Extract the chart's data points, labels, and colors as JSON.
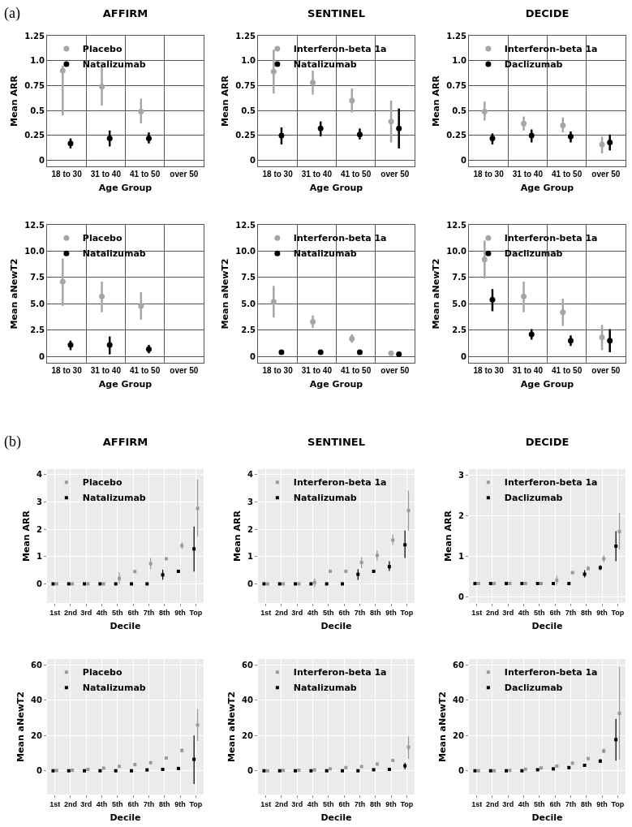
{
  "chart_data": [
    {
      "type": "scatter",
      "title": "AFFIRM",
      "xlabel": "Age Group",
      "ylabel": "Mean ARR",
      "annotations": [
        "(a)"
      ],
      "categories": [
        "18 to 30",
        "31 to 40",
        "41 to 50",
        "over 50"
      ],
      "ylim": [
        -0.06,
        1.25
      ],
      "yticks": [
        0,
        0.25,
        0.5,
        0.75,
        {
          "value": 1,
          "label": "1.0"
        },
        1.25
      ],
      "grid": true,
      "legend": "top left",
      "marker": "circle",
      "series": [
        {
          "name": "Placebo",
          "color": "#a6a6a6",
          "values": [
            0.9,
            0.74,
            0.49,
            null
          ],
          "errors": [
            [
              0.45,
              0.95
            ],
            [
              0.55,
              0.94
            ],
            [
              0.37,
              0.62
            ],
            null
          ]
        },
        {
          "name": "Natalizumab",
          "color": "#000000",
          "values": [
            0.17,
            0.22,
            0.22,
            null
          ],
          "errors": [
            [
              0.12,
              0.22
            ],
            [
              0.14,
              0.3
            ],
            [
              0.17,
              0.28
            ],
            null
          ]
        }
      ]
    },
    {
      "type": "scatter",
      "title": "SENTINEL",
      "xlabel": "Age Group",
      "ylabel": "Mean ARR",
      "categories": [
        "18 to 30",
        "31 to 40",
        "41 to 50",
        "over 50"
      ],
      "ylim": [
        -0.06,
        1.25
      ],
      "yticks": [
        0,
        0.25,
        0.5,
        0.75,
        {
          "value": 1,
          "label": "1.0"
        },
        1.25
      ],
      "grid": true,
      "legend": "top left",
      "marker": "circle",
      "series": [
        {
          "name": "Interferon-beta 1a",
          "color": "#a6a6a6",
          "values": [
            0.89,
            0.78,
            0.6,
            0.39
          ],
          "errors": [
            [
              0.67,
              1.11
            ],
            [
              0.66,
              0.9
            ],
            [
              0.48,
              0.72
            ],
            [
              0.18,
              0.6
            ]
          ]
        },
        {
          "name": "Natalizumab",
          "color": "#000000",
          "values": [
            0.25,
            0.32,
            0.26,
            0.32
          ],
          "errors": [
            [
              0.16,
              0.33
            ],
            [
              0.24,
              0.39
            ],
            [
              0.21,
              0.32
            ],
            [
              0.12,
              0.52
            ]
          ]
        }
      ]
    },
    {
      "type": "scatter",
      "title": "DECIDE",
      "xlabel": "Age Group",
      "ylabel": "Mean ARR",
      "categories": [
        "18 to 30",
        "31 to 40",
        "41 to 50",
        "over 50"
      ],
      "ylim": [
        -0.06,
        1.25
      ],
      "yticks": [
        0,
        0.25,
        0.5,
        0.75,
        {
          "value": 1,
          "label": "1.0"
        },
        1.25
      ],
      "grid": true,
      "legend": "top left",
      "marker": "circle",
      "series": [
        {
          "name": "Interferon-beta 1a",
          "color": "#a6a6a6",
          "values": [
            0.49,
            0.37,
            0.35,
            0.16
          ],
          "errors": [
            [
              0.4,
              0.59
            ],
            [
              0.3,
              0.44
            ],
            [
              0.28,
              0.43
            ],
            [
              0.07,
              0.24
            ]
          ]
        },
        {
          "name": "Daclizumab",
          "color": "#000000",
          "values": [
            0.22,
            0.25,
            0.24,
            0.18
          ],
          "errors": [
            [
              0.16,
              0.27
            ],
            [
              0.18,
              0.31
            ],
            [
              0.18,
              0.29
            ],
            [
              0.1,
              0.26
            ]
          ]
        }
      ]
    },
    {
      "type": "scatter",
      "xlabel": "Age Group",
      "ylabel": "Mean aNewT2",
      "categories": [
        "18 to 30",
        "31 to 40",
        "41 to 50",
        "over 50"
      ],
      "ylim": [
        -0.6,
        12.5
      ],
      "yticks": [
        0,
        2.5,
        {
          "value": 5,
          "label": "5.0"
        },
        7.5,
        {
          "value": 10,
          "label": "10.0"
        },
        12.5
      ],
      "grid": true,
      "legend": "top left",
      "marker": "circle",
      "series": [
        {
          "name": "Placebo",
          "color": "#a6a6a6",
          "values": [
            7.1,
            5.7,
            4.8,
            null
          ],
          "errors": [
            [
              4.8,
              9.3
            ],
            [
              4.2,
              7.1
            ],
            [
              3.5,
              6.1
            ],
            null
          ]
        },
        {
          "name": "Natalizumab",
          "color": "#000000",
          "values": [
            1.1,
            1.1,
            0.7,
            null
          ],
          "errors": [
            [
              0.6,
              1.5
            ],
            [
              0.2,
              1.9
            ],
            [
              0.3,
              1.1
            ],
            null
          ]
        }
      ]
    },
    {
      "type": "scatter",
      "xlabel": "Age Group",
      "ylabel": "Mean aNewT2",
      "categories": [
        "18 to 30",
        "31 to 40",
        "41 to 50",
        "over 50"
      ],
      "ylim": [
        -0.6,
        12.5
      ],
      "yticks": [
        0,
        2.5,
        {
          "value": 5,
          "label": "5.0"
        },
        7.5,
        {
          "value": 10,
          "label": "10.0"
        },
        12.5
      ],
      "grid": true,
      "legend": "top left",
      "marker": "circle",
      "series": [
        {
          "name": "Interferon-beta 1a",
          "color": "#a6a6a6",
          "values": [
            5.2,
            3.3,
            1.7,
            0.3
          ],
          "errors": [
            [
              3.7,
              6.7
            ],
            [
              2.7,
              3.9
            ],
            [
              1.3,
              2.1
            ],
            null
          ]
        },
        {
          "name": "Natalizumab",
          "color": "#000000",
          "values": [
            0.4,
            0.4,
            0.4,
            0.2
          ]
        }
      ]
    },
    {
      "type": "scatter",
      "xlabel": "Age Group",
      "ylabel": "Mean aNewT2",
      "categories": [
        "18 to 30",
        "31 to 40",
        "41 to 50",
        "over 50"
      ],
      "ylim": [
        -0.6,
        12.5
      ],
      "yticks": [
        0,
        2.5,
        {
          "value": 5,
          "label": "5.0"
        },
        7.5,
        {
          "value": 10,
          "label": "10.0"
        },
        12.5
      ],
      "grid": true,
      "legend": "top left",
      "marker": "circle",
      "series": [
        {
          "name": "Interferon-beta 1a",
          "color": "#a6a6a6",
          "values": [
            9.2,
            5.7,
            4.2,
            1.8
          ],
          "errors": [
            [
              7.4,
              11.0
            ],
            [
              4.2,
              7.1
            ],
            [
              2.9,
              5.5
            ],
            [
              0.6,
              3.0
            ]
          ]
        },
        {
          "name": "Daclizumab",
          "color": "#000000",
          "values": [
            5.4,
            2.1,
            1.5,
            1.5
          ],
          "errors": [
            [
              4.3,
              6.4
            ],
            [
              1.6,
              2.6
            ],
            [
              1.0,
              2.0
            ],
            [
              0.4,
              2.6
            ]
          ]
        }
      ]
    },
    {
      "type": "scatter",
      "title": "AFFIRM",
      "xlabel": "Decile",
      "ylabel": "Mean ARR",
      "annotations": [
        "(b)"
      ],
      "categories": [
        "1st",
        "2nd",
        "3rd",
        "4th",
        "5th",
        "6th",
        "7th",
        "8th",
        "9th",
        "Top"
      ],
      "ylim": [
        -0.7,
        4.2
      ],
      "yticks": [
        0,
        1,
        2,
        3,
        4
      ],
      "grid": true,
      "legend": "top left",
      "marker": "square",
      "series": [
        {
          "name": "Natalizumab",
          "color": "#000000",
          "values": [
            0,
            0,
            0,
            0,
            0,
            0,
            0,
            0.33,
            0.46,
            1.28
          ],
          "errors": [
            null,
            null,
            null,
            null,
            null,
            null,
            null,
            [
              0.15,
              0.52
            ],
            [
              0.42,
              0.5
            ],
            [
              0.45,
              2.1
            ]
          ]
        },
        {
          "name": "Placebo",
          "color": "#999999",
          "values": [
            0,
            0,
            0,
            0,
            0.2,
            0.45,
            0.74,
            0.92,
            1.4,
            2.76
          ],
          "errors": [
            null,
            null,
            null,
            null,
            [
              0,
              0.42
            ],
            null,
            [
              0.53,
              0.95
            ],
            null,
            [
              1.28,
              1.53
            ],
            [
              1.73,
              3.82
            ]
          ]
        }
      ]
    },
    {
      "type": "scatter",
      "title": "SENTINEL",
      "xlabel": "Decile",
      "ylabel": "Mean ARR",
      "categories": [
        "1st",
        "2nd",
        "3rd",
        "4th",
        "5th",
        "6th",
        "7th",
        "8th",
        "9th",
        "Top"
      ],
      "ylim": [
        -0.7,
        4.2
      ],
      "yticks": [
        0,
        1,
        2,
        3,
        4
      ],
      "grid": true,
      "legend": "top left",
      "marker": "square",
      "series": [
        {
          "name": "Natalizumab",
          "color": "#000000",
          "values": [
            0,
            0,
            0,
            0,
            0,
            0,
            0.35,
            0.46,
            0.63,
            1.43
          ],
          "errors": [
            null,
            null,
            null,
            null,
            null,
            null,
            [
              0.15,
              0.54
            ],
            null,
            [
              0.47,
              0.83
            ],
            [
              0.95,
              1.95
            ]
          ]
        },
        {
          "name": "Interferon-beta 1a",
          "color": "#999999",
          "values": [
            0,
            0,
            0,
            0.05,
            0.46,
            0.46,
            0.78,
            1.04,
            1.6,
            2.68
          ],
          "errors": [
            null,
            null,
            null,
            [
              -0.13,
              0.2
            ],
            null,
            null,
            [
              0.58,
              0.98
            ],
            [
              0.85,
              1.22
            ],
            [
              1.42,
              1.8
            ],
            [
              1.95,
              3.41
            ]
          ]
        }
      ]
    },
    {
      "type": "scatter",
      "title": "DECIDE",
      "xlabel": "Decile",
      "ylabel": "Mean ARR",
      "categories": [
        "1st",
        "2nd",
        "3rd",
        "4th",
        "5th",
        "6th",
        "7th",
        "8th",
        "9th",
        "Top"
      ],
      "ylim": [
        -0.15,
        3.15
      ],
      "yticks": [
        0,
        1,
        2,
        3
      ],
      "grid": true,
      "legend": "top left",
      "marker": "square",
      "series": [
        {
          "name": "Daclizumab",
          "color": "#000000",
          "values": [
            0.33,
            0.33,
            0.33,
            0.33,
            0.33,
            0.33,
            0.33,
            0.56,
            0.72,
            1.25
          ],
          "errors": [
            null,
            null,
            null,
            null,
            null,
            null,
            null,
            [
              0.48,
              0.66
            ],
            [
              0.66,
              0.78
            ],
            [
              0.88,
              1.62
            ]
          ]
        },
        {
          "name": "Interferon-beta 1a",
          "color": "#999999",
          "values": [
            0.33,
            0.33,
            0.33,
            0.33,
            0.33,
            0.41,
            0.6,
            0.7,
            0.94,
            1.61
          ],
          "errors": [
            null,
            null,
            null,
            null,
            null,
            [
              0.3,
              0.52
            ],
            null,
            [
              0.65,
              0.76
            ],
            [
              0.85,
              1.03
            ],
            [
              1.17,
              2.07
            ]
          ]
        }
      ]
    },
    {
      "type": "scatter",
      "xlabel": "Decile",
      "ylabel": "Mean aNewT2",
      "categories": [
        "1st",
        "2nd",
        "3rd",
        "4th",
        "5th",
        "6th",
        "7th",
        "8th",
        "9th",
        "Top"
      ],
      "ylim": [
        -13.5,
        63.5
      ],
      "yticks": [
        0,
        20,
        40,
        60
      ],
      "grid": true,
      "legend": "top left",
      "marker": "square",
      "series": [
        {
          "name": "Natalizumab",
          "color": "#000000",
          "values": [
            0,
            0,
            0,
            0,
            0,
            0,
            0.5,
            0.8,
            1.3,
            6.5
          ],
          "errors": [
            null,
            null,
            null,
            null,
            null,
            null,
            null,
            null,
            null,
            [
              -7.5,
              20
            ]
          ]
        },
        {
          "name": "Placebo",
          "color": "#999999",
          "values": [
            0.2,
            0.3,
            0.8,
            1.5,
            2.5,
            3.5,
            4.6,
            7.2,
            11.5,
            26
          ],
          "errors": [
            null,
            null,
            null,
            null,
            null,
            null,
            null,
            null,
            [
              10.5,
              12.8
            ],
            [
              16.9,
              35
            ]
          ]
        }
      ]
    },
    {
      "type": "scatter",
      "xlabel": "Decile",
      "ylabel": "Mean aNewT2",
      "categories": [
        "1st",
        "2nd",
        "3rd",
        "4th",
        "5th",
        "6th",
        "7th",
        "8th",
        "9th",
        "Top"
      ],
      "ylim": [
        -13.5,
        63.5
      ],
      "yticks": [
        0,
        20,
        40,
        60
      ],
      "grid": true,
      "legend": "top left",
      "marker": "square",
      "series": [
        {
          "name": "Natalizumab",
          "color": "#000000",
          "values": [
            0,
            0,
            0,
            0,
            0,
            0,
            0,
            0.6,
            0.8,
            2.8
          ],
          "errors": [
            null,
            null,
            null,
            null,
            null,
            null,
            null,
            null,
            null,
            [
              0.8,
              4.6
            ]
          ]
        },
        {
          "name": "Interferon-beta 1a",
          "color": "#999999",
          "values": [
            0,
            0.2,
            0.3,
            0.5,
            1.1,
            1.8,
            2.4,
            3.8,
            5.9,
            13.4
          ],
          "errors": [
            null,
            null,
            null,
            null,
            null,
            null,
            null,
            null,
            null,
            [
              6.8,
              19.5
            ]
          ]
        }
      ]
    },
    {
      "type": "scatter",
      "xlabel": "Decile",
      "ylabel": "Mean aNewT2",
      "categories": [
        "1st",
        "2nd",
        "3rd",
        "4th",
        "5th",
        "6th",
        "7th",
        "8th",
        "9th",
        "Top"
      ],
      "ylim": [
        -13.5,
        63.5
      ],
      "yticks": [
        0,
        20,
        40,
        60
      ],
      "grid": true,
      "legend": "top left",
      "marker": "square",
      "series": [
        {
          "name": "Daclizumab",
          "color": "#000000",
          "values": [
            0,
            0,
            0,
            0,
            0.6,
            1.1,
            1.8,
            3.1,
            5.5,
            17.7
          ],
          "errors": [
            null,
            null,
            null,
            null,
            null,
            null,
            null,
            null,
            [
              4.6,
              6.5
            ],
            [
              5.8,
              29.5
            ]
          ]
        },
        {
          "name": "Interferon-beta 1a",
          "color": "#999999",
          "values": [
            0,
            0,
            0.2,
            0.9,
            1.6,
            2.7,
            4.3,
            6.9,
            11.2,
            32.6
          ],
          "errors": [
            null,
            null,
            null,
            null,
            null,
            null,
            null,
            null,
            [
              10,
              12.8
            ],
            [
              6.2,
              59
            ]
          ]
        }
      ]
    }
  ]
}
